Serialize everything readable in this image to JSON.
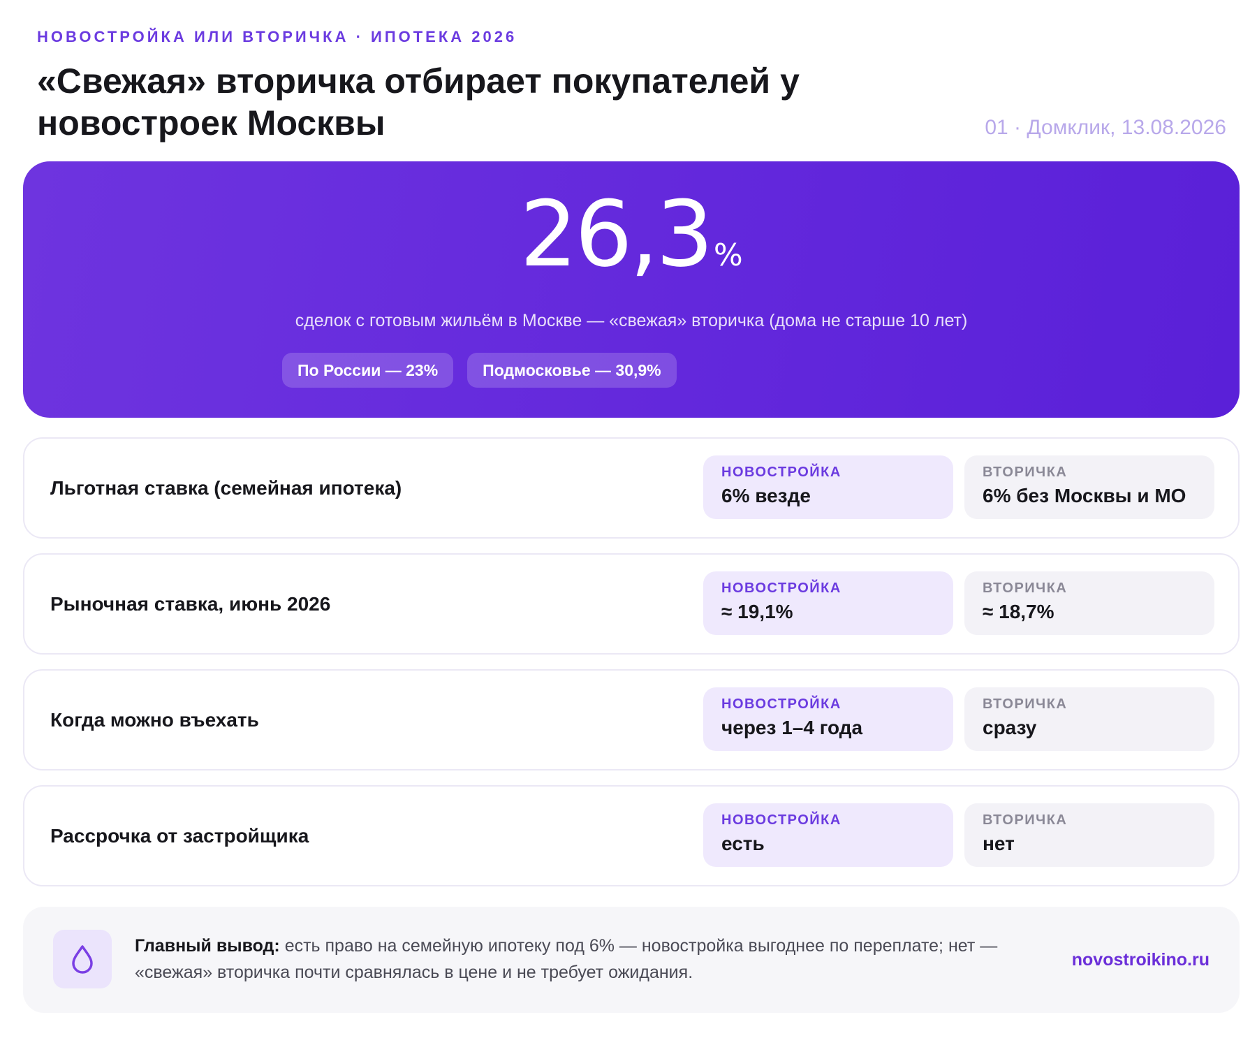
{
  "header": {
    "eyebrow": "НОВОСТРОЙКА ИЛИ ВТОРИЧКА · ИПОТЕКА 2026",
    "title": "«Свежая» вторичка отбирает покупателей у новостроек Москвы",
    "source": "01 · Домклик, 13.08.2026"
  },
  "hero": {
    "value": "26,3",
    "unit": "%",
    "subtitle": "сделок с готовым жильём в Москве — «свежая» вторичка (дома не старше 10 лет)",
    "chips": [
      "По России — 23%",
      "Подмосковье — 30,9%"
    ]
  },
  "rows": [
    {
      "label": "Льготная ставка (семейная ипотека)",
      "new_head": "НОВОСТРОЙКА",
      "new_value": "6% везде",
      "old_head": "ВТОРИЧКА",
      "old_value": "6% без Москвы и МО"
    },
    {
      "label": "Рыночная ставка, июнь 2026",
      "new_head": "НОВОСТРОЙКА",
      "new_value": "≈ 19,1%",
      "old_head": "ВТОРИЧКА",
      "old_value": "≈ 18,7%"
    },
    {
      "label": "Когда можно въехать",
      "new_head": "НОВОСТРОЙКА",
      "new_value": "через 1–4 года",
      "old_head": "ВТОРИЧКА",
      "old_value": "сразу"
    },
    {
      "label": "Рассрочка от застройщика",
      "new_head": "НОВОСТРОЙКА",
      "new_value": "есть",
      "old_head": "ВТОРИЧКА",
      "old_value": "нет"
    }
  ],
  "summary": {
    "icon": "drop-icon",
    "lead": "Главный вывод:",
    "text": " есть право на семейную ипотеку под 6% — новостройка выгоднее по переплате; нет — «свежая» вторичка почти сравнялась в цене и не требует ожидания.",
    "link": "novostroikino.ru"
  },
  "colors": {
    "accent": "#6b3be0",
    "hero_bg": "#6328dc",
    "new_cell_bg": "#efe9fd",
    "old_cell_bg": "#f3f2f7"
  }
}
